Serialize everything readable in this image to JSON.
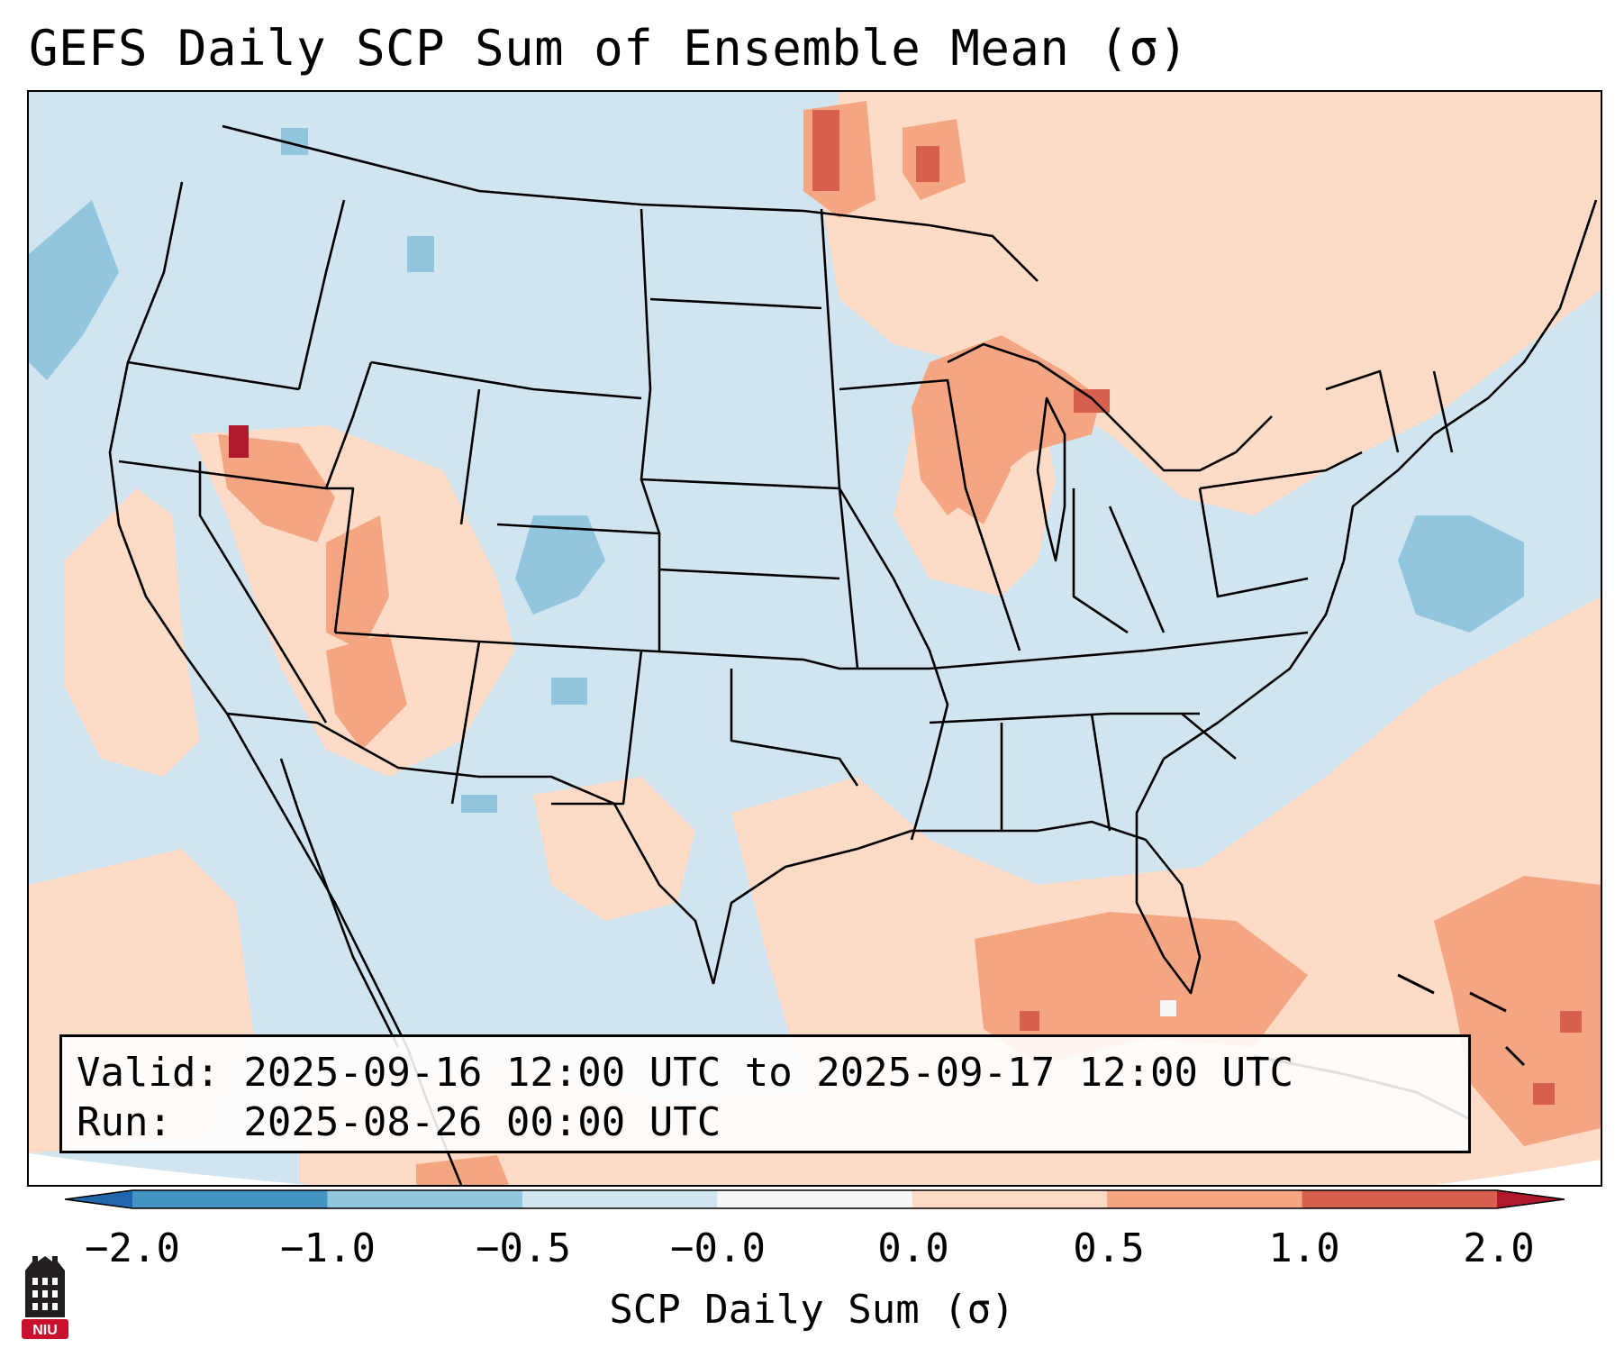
{
  "title": "GEFS Daily SCP Sum of Ensemble Mean (σ)",
  "info": {
    "valid_line": "Valid: 2025-09-16 12:00 UTC to 2025-09-17 12:00 UTC",
    "run_line": "Run:   2025-08-26 00:00 UTC"
  },
  "colorbar": {
    "label": "SCP Daily Sum (σ)",
    "ticks": [
      "−2.0",
      "−1.0",
      "−0.5",
      "−0.0",
      "0.0",
      "0.5",
      "1.0",
      "2.0"
    ],
    "bins": [
      {
        "from": -2.0,
        "to": -1.0,
        "color": "#4393c3"
      },
      {
        "from": -1.0,
        "to": -0.5,
        "color": "#92c5de"
      },
      {
        "from": -0.5,
        "to": -0.0,
        "color": "#d1e5f0"
      },
      {
        "from": -0.0,
        "to": 0.0,
        "color": "#f7f7f7"
      },
      {
        "from": 0.0,
        "to": 0.5,
        "color": "#fddbc7"
      },
      {
        "from": 0.5,
        "to": 1.0,
        "color": "#f4a582"
      },
      {
        "from": 1.0,
        "to": 2.0,
        "color": "#d6604d"
      }
    ],
    "under_color": "#2166ac",
    "over_color": "#b2182b"
  },
  "logo_text": "NIU",
  "colors": {
    "neutral_neg": "#d1e5f0",
    "light_pos": "#fddbc7",
    "mid_pos": "#f4a582",
    "strong_pos": "#d6604d",
    "extreme_pos": "#b2182b",
    "mid_neg": "#92c5de",
    "near_zero": "#f7f7f7",
    "logo_red": "#c8102e"
  }
}
